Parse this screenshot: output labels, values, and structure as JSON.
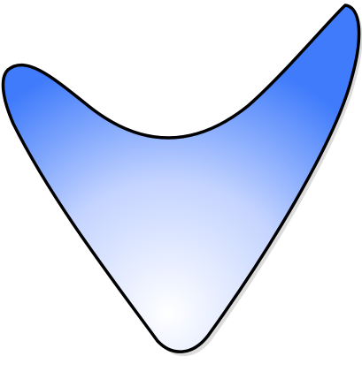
{
  "shape": {
    "name": "boomerang-shape",
    "fill_center_color": "#ffffff",
    "fill_mid_color": "#c4d4ff",
    "fill_edge_color": "#3f7bfb",
    "stroke_color": "#000000",
    "shadow_color": "#bfbfbf"
  },
  "background_color": "#ffffff"
}
